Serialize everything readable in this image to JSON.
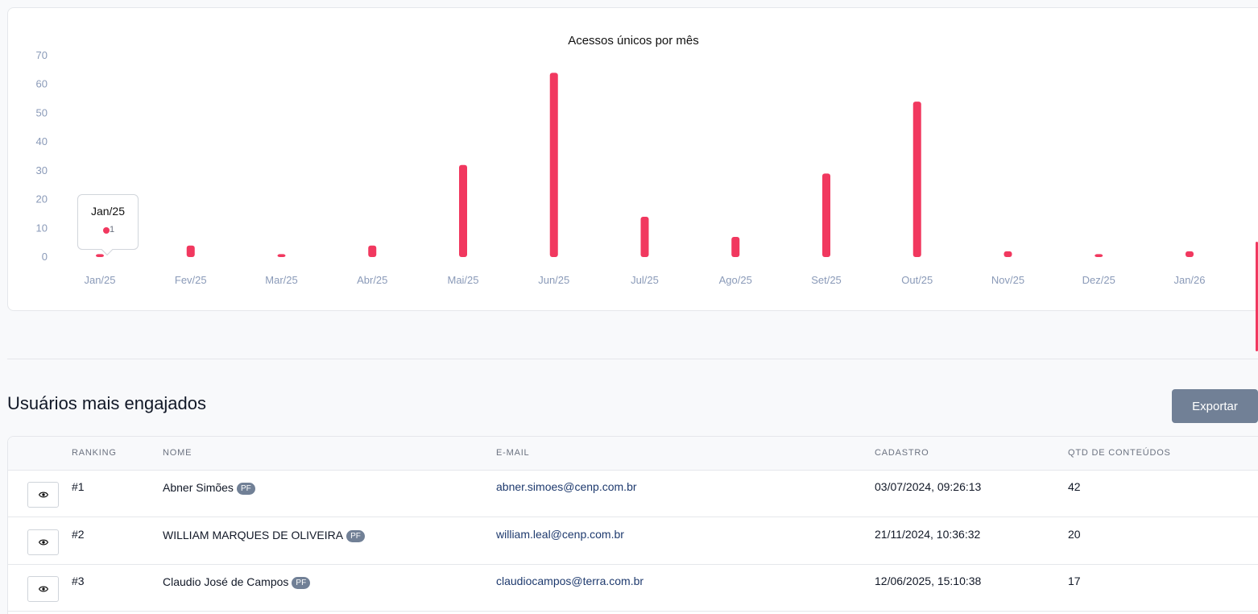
{
  "chart_data": {
    "type": "bar",
    "title": "Acessos únicos por mês",
    "categories": [
      "Jan/25",
      "Fev/25",
      "Mar/25",
      "Abr/25",
      "Mai/25",
      "Jun/25",
      "Jul/25",
      "Ago/25",
      "Set/25",
      "Out/25",
      "Nov/25",
      "Dez/25",
      "Jan/26"
    ],
    "values": [
      1,
      4,
      1,
      4,
      32,
      64,
      14,
      7,
      29,
      54,
      2,
      1,
      2
    ],
    "yticks": [
      0,
      10,
      20,
      30,
      40,
      50,
      60,
      70
    ],
    "ylim": [
      0,
      70
    ],
    "bar_color": "#f1385f",
    "grid": false,
    "tooltip": {
      "title": "Jan/25",
      "value": "1"
    }
  },
  "engaged": {
    "title": "Usuários mais engajados",
    "export_label": "Exportar",
    "columns": [
      "RANKING",
      "NOME",
      "E-MAIL",
      "CADASTRO",
      "QTD DE CONTEÚDOS"
    ],
    "rows": [
      {
        "rank": "#1",
        "name": "Abner Simões",
        "badge": "PF",
        "email": "abner.simoes@cenp.com.br",
        "registered": "03/07/2024, 09:26:13",
        "count": "42"
      },
      {
        "rank": "#2",
        "name": "WILLIAM MARQUES DE OLIVEIRA",
        "badge": "PF",
        "email": "william.leal@cenp.com.br",
        "registered": "21/11/2024, 10:36:32",
        "count": "20"
      },
      {
        "rank": "#3",
        "name": "Claudio José de Campos",
        "badge": "PF",
        "email": "claudiocampos@terra.com.br",
        "registered": "12/06/2025, 15:10:38",
        "count": "17"
      }
    ]
  },
  "colors": {
    "accent": "#f1385f",
    "button": "#718096",
    "email": "#1e3a6e",
    "axis_label": "#8a9ab8"
  }
}
